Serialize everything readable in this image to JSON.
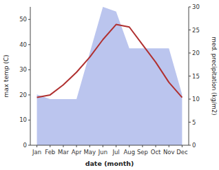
{
  "chart_data": {
    "type": "line",
    "xlabel": "date (month)",
    "ylabel": "max temp (C)",
    "y2label": "med. precipitation (kg/m2)",
    "categories": [
      "Jan",
      "Feb",
      "Mar",
      "Apr",
      "May",
      "Jun",
      "Jul",
      "Aug",
      "Sep",
      "Oct",
      "Nov",
      "Dec"
    ],
    "series": [
      {
        "type": "area",
        "axis": "y2",
        "color": "#bbc5ee",
        "values": [
          11,
          10,
          10,
          10,
          20,
          30,
          29,
          21,
          21,
          21,
          21,
          11
        ]
      },
      {
        "type": "line",
        "color": "#b03030",
        "values": [
          19,
          20,
          24,
          29,
          35,
          42,
          48,
          47,
          40,
          33,
          25,
          19
        ]
      }
    ],
    "ylim": [
      0,
      55
    ],
    "yticks": [
      0,
      10,
      20,
      30,
      40,
      50
    ],
    "y2lim": [
      0,
      30
    ],
    "y2ticks": [
      0,
      5,
      10,
      15,
      20,
      25,
      30
    ],
    "grid": false
  }
}
